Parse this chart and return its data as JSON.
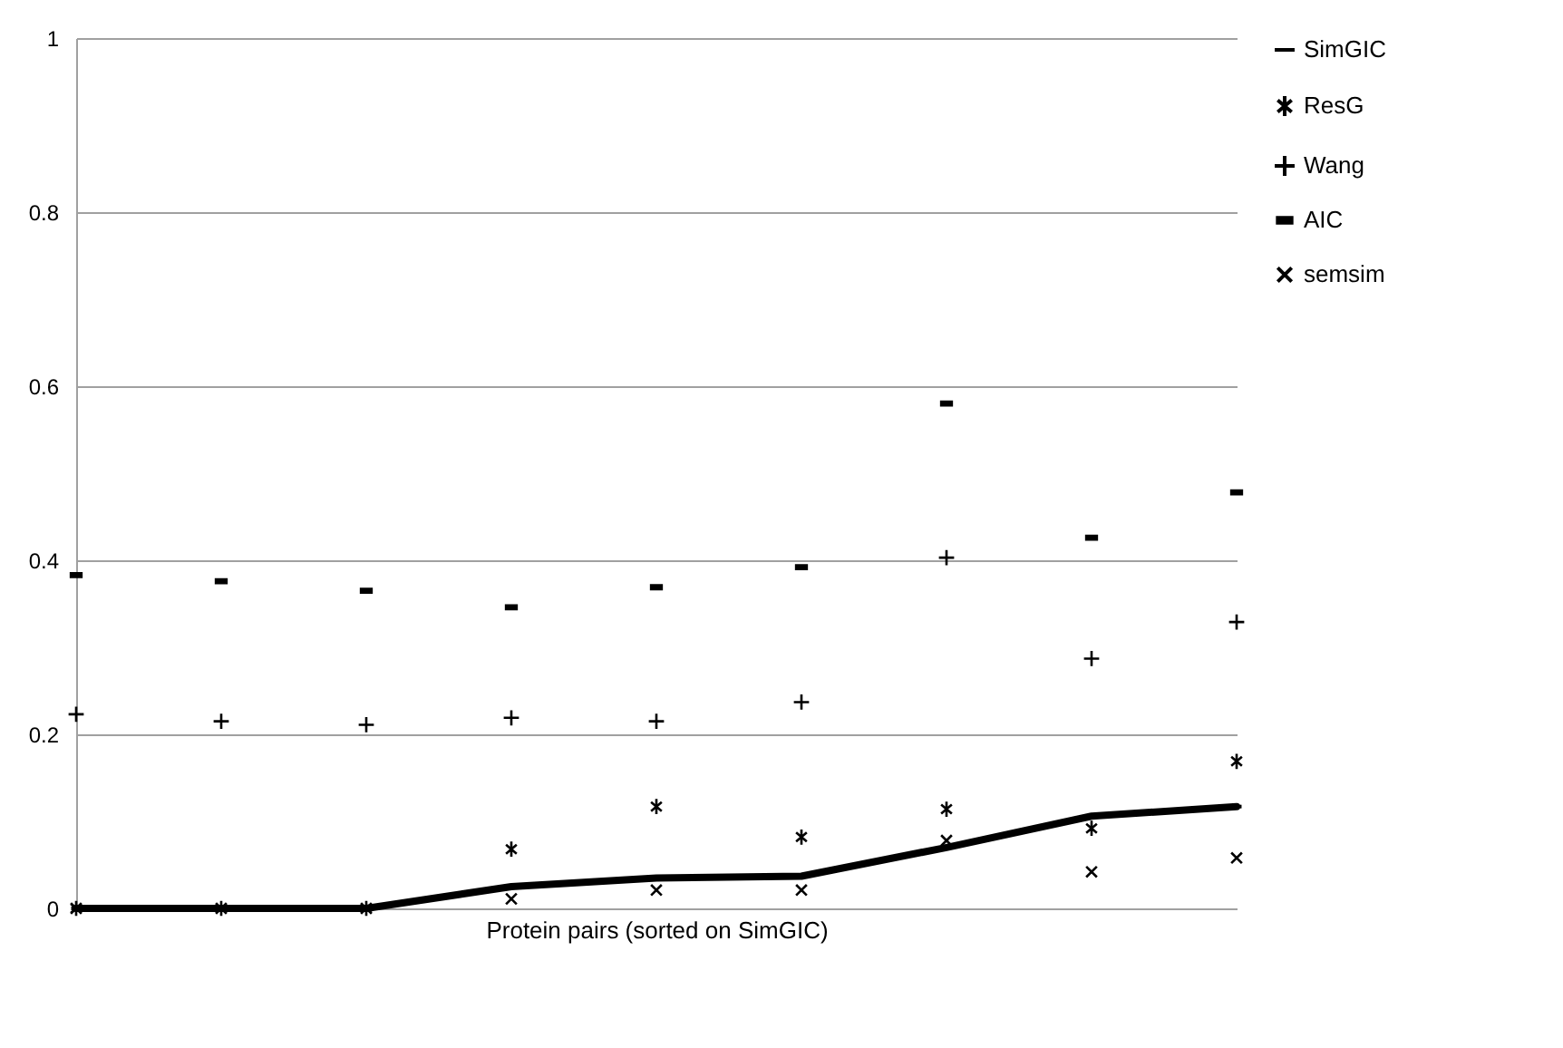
{
  "chart_data": {
    "type": "line",
    "xlabel": "Protein pairs (sorted on SimGIC)",
    "categories": [
      null,
      null,
      null,
      null,
      null,
      null,
      null,
      null,
      null
    ],
    "ylim": [
      0,
      1
    ],
    "yticks": [
      0,
      0.2,
      0.4,
      0.6,
      0.8,
      1
    ],
    "grid": "y",
    "legend": "right",
    "tick_labels": "y",
    "series": [
      {
        "name": "SimGIC",
        "color": "#000000",
        "marker": "none",
        "values": [
          0,
          0,
          0,
          0.025,
          0.035,
          0.037,
          0.07,
          0.106,
          0.117
        ]
      },
      {
        "name": "ResG",
        "type": "scatter",
        "color": "#000000",
        "values": [
          0,
          0,
          0,
          0.068,
          0.117,
          0.082,
          0.114,
          0.092,
          0.169
        ]
      },
      {
        "name": "Wang",
        "type": "scatter",
        "color": "#000000",
        "marker": "cross",
        "values": [
          0.223,
          0.215,
          0.211,
          0.219,
          0.215,
          0.237,
          0.403,
          0.287,
          0.329
        ]
      },
      {
        "name": "AIC",
        "type": "scatter",
        "color": "#000000",
        "marker": "square",
        "values": [
          0.383,
          0.376,
          0.365,
          0.346,
          0.369,
          0.392,
          0.58,
          0.426,
          0.478
        ]
      },
      {
        "name": "semsim",
        "type": "scatter",
        "color": "#000000",
        "values": [
          0,
          0,
          0,
          0.011,
          0.021,
          0.021,
          0.078,
          0.042,
          0.058
        ]
      }
    ]
  }
}
